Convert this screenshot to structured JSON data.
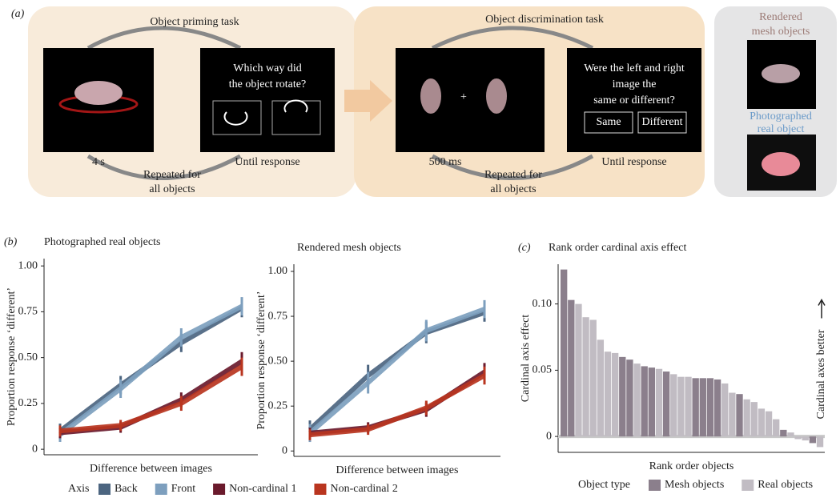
{
  "panel_a": {
    "label": "(a)",
    "priming": {
      "title": "Object priming task",
      "question": [
        "Which way did",
        "the object rotate?"
      ],
      "time1": "4 s",
      "time2": "Until response",
      "repeat": [
        "Repeated for",
        "all objects"
      ]
    },
    "discrimination": {
      "title": "Object discrimination task",
      "fixation": "+",
      "question": [
        "Were the left and right",
        "image the",
        "same or different?"
      ],
      "buttons": [
        "Same",
        "Different"
      ],
      "time1": "500 ms",
      "time2": "Until response",
      "repeat": [
        "Repeated for",
        "all objects"
      ]
    },
    "stimuli": {
      "rendered": [
        "Rendered",
        "mesh objects"
      ],
      "photographed": [
        "Photographed",
        "real object"
      ]
    }
  },
  "chart_data": [
    {
      "type": "line",
      "panel_label": "(b)",
      "title": "Photographed real objects",
      "y_label": "Proportion response ‘different’",
      "x_label": "Difference between images",
      "categories": [
        null,
        null,
        null,
        null
      ],
      "ylim": [
        -0.03,
        1.04
      ],
      "yticks": [
        0,
        0.25,
        {
          "value": 0.5,
          "label": "0.50"
        },
        0.75,
        {
          "value": 1,
          "label": "1.00"
        }
      ],
      "legend_title": "Axis",
      "series": [
        {
          "name": "Back",
          "color": "#4c6580",
          "values": [
            0.1,
            0.35,
            0.58,
            0.77
          ],
          "errors": [
            0.04,
            0.05,
            0.05,
            0.05
          ]
        },
        {
          "name": "Front",
          "color": "#7d9fbe",
          "values": [
            0.08,
            0.33,
            0.61,
            0.78
          ],
          "errors": [
            0.04,
            0.05,
            0.05,
            0.05
          ]
        },
        {
          "name": "Non-cardinal 1",
          "color": "#6a1a2c",
          "values": [
            0.09,
            0.12,
            0.27,
            0.48
          ],
          "errors": [
            0.03,
            0.03,
            0.04,
            0.05
          ]
        },
        {
          "name": "Non-cardinal 2",
          "color": "#b9351f",
          "values": [
            0.1,
            0.13,
            0.25,
            0.45
          ],
          "errors": [
            0.03,
            0.03,
            0.04,
            0.05
          ]
        }
      ]
    },
    {
      "type": "line",
      "title": "Rendered mesh objects",
      "y_label": "Proportion response ‘different’",
      "x_label": "Difference between images",
      "categories": [
        null,
        null,
        null,
        null
      ],
      "ylim": [
        -0.03,
        1.04
      ],
      "yticks": [
        0,
        0.25,
        {
          "value": 0.5,
          "label": "0.50"
        },
        0.75,
        {
          "value": 1,
          "label": "1.00"
        }
      ],
      "series": [
        {
          "color": "#4c6580",
          "values": [
            0.12,
            0.42,
            0.66,
            0.77
          ],
          "errors": [
            0.05,
            0.06,
            0.06,
            0.05
          ]
        },
        {
          "color": "#7d9fbe",
          "values": [
            0.1,
            0.38,
            0.67,
            0.79
          ],
          "errors": [
            0.05,
            0.06,
            0.06,
            0.05
          ]
        },
        {
          "color": "#6a1a2c",
          "values": [
            0.1,
            0.13,
            0.23,
            0.44
          ],
          "errors": [
            0.03,
            0.03,
            0.04,
            0.05
          ]
        },
        {
          "color": "#b9351f",
          "values": [
            0.09,
            0.12,
            0.24,
            0.42
          ],
          "errors": [
            0.03,
            0.03,
            0.04,
            0.05
          ]
        }
      ]
    },
    {
      "type": "bar",
      "panel_label": "(c)",
      "title": "Rank order cardinal axis effect",
      "y_label": "Cardinal axis effect",
      "x_label": "Rank order objects",
      "annotation": "Cardinal axes better",
      "legend_title": "Object type",
      "categories": [
        null,
        null,
        null,
        null,
        null,
        null,
        null,
        null,
        null,
        null,
        null,
        null,
        null,
        null,
        null,
        null,
        null,
        null,
        null,
        null,
        null,
        null,
        null,
        null,
        null,
        null,
        null,
        null,
        null,
        null,
        null,
        null,
        null,
        null,
        null,
        null
      ],
      "ylim": [
        -0.012,
        0.13
      ],
      "yticks": [
        0,
        0.05,
        {
          "value": 0.1,
          "label": "0.10"
        }
      ],
      "series": [
        {
          "name": "Mesh objects",
          "color": "#8b7f8c",
          "values": [
            0.126,
            0.103,
            null,
            null,
            null,
            null,
            null,
            null,
            0.06,
            0.058,
            null,
            0.053,
            0.052,
            null,
            0.049,
            null,
            null,
            null,
            0.044,
            0.044,
            0.044,
            0.043,
            null,
            null,
            0.032,
            null,
            null,
            null,
            null,
            null,
            0.005,
            null,
            null,
            null,
            -0.005,
            null
          ]
        },
        {
          "name": "Real objects",
          "color": "#c1bcc3",
          "values": [
            null,
            null,
            0.1,
            0.09,
            0.088,
            0.073,
            0.064,
            0.063,
            null,
            null,
            0.055,
            null,
            null,
            0.051,
            null,
            0.047,
            0.045,
            0.045,
            null,
            null,
            null,
            null,
            0.04,
            0.033,
            null,
            0.028,
            0.026,
            0.021,
            0.019,
            0.013,
            null,
            0.003,
            -0.002,
            -0.003,
            null,
            -0.008
          ]
        }
      ]
    }
  ]
}
